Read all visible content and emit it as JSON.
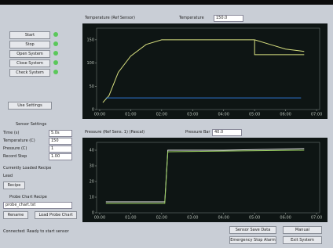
{
  "sidebar": {
    "buttons": [
      "Start",
      "Stop",
      "Open System",
      "Close System",
      "Check System"
    ],
    "settings_button": "Use Settings",
    "sensor_title": "Sensor Settings",
    "fields": [
      {
        "label": "Time (s)",
        "value": "5.0s"
      },
      {
        "label": "Temperature (C)",
        "value": "150"
      },
      {
        "label": "Pressure (C)",
        "value": "1"
      },
      {
        "label": "Record Step",
        "value": "1.00"
      }
    ],
    "recipe_title": "Currently Loaded Recipe",
    "recipe_value": "Lead",
    "recipe_button": "Recipe",
    "probe_title": "Probe Chart Recipe",
    "probe_file": "probe_chart.txt",
    "rename_button": "Rename",
    "load_button": "Load Probe Chart"
  },
  "charts": [
    {
      "title": "Temperature (Ref Sensor)",
      "extra_label": "Temperature",
      "extra_value": "150.0",
      "xlim": [
        -0.1,
        7.1
      ],
      "xticks": [
        {
          "value": 0,
          "label": "00:00"
        },
        {
          "value": 1,
          "label": "01:00"
        },
        {
          "value": 2,
          "label": "02:00"
        },
        {
          "value": 3,
          "label": "03:00"
        },
        {
          "value": 4,
          "label": "04:00"
        },
        {
          "value": 5,
          "label": "05:00"
        },
        {
          "value": 6,
          "label": "06:00"
        },
        {
          "value": 7,
          "label": "07:00"
        }
      ],
      "ylim": [
        0,
        175
      ],
      "yticks": [
        0,
        50,
        100,
        150
      ],
      "series": [
        {
          "color": "#d8e080",
          "x": [
            0.1,
            0.3,
            0.6,
            1.0,
            1.5,
            2.0,
            3,
            4,
            5
          ],
          "y": [
            15,
            30,
            80,
            115,
            140,
            150,
            150,
            150,
            150
          ]
        },
        {
          "color": "#d8e080",
          "x": [
            5,
            5.5,
            6,
            6.6
          ],
          "y": [
            150,
            140,
            130,
            125
          ]
        },
        {
          "color": "#d8e080",
          "x": [
            5,
            5,
            6.6
          ],
          "y": [
            150,
            118,
            118
          ]
        },
        {
          "color": "#2f7ad8",
          "x": [
            0.2,
            6.5
          ],
          "y": [
            25,
            25
          ]
        }
      ]
    },
    {
      "title": "Pressure (Ref Sens. 1) (Pascal)",
      "extra_label": "Pressure Bar",
      "extra_value": "40.0",
      "xlim": [
        -0.1,
        7.1
      ],
      "xticks": [
        {
          "value": 0,
          "label": "00:00"
        },
        {
          "value": 1,
          "label": "01:00"
        },
        {
          "value": 2,
          "label": "02:00"
        },
        {
          "value": 3,
          "label": "03:00"
        },
        {
          "value": 4,
          "label": "04:00"
        },
        {
          "value": 5,
          "label": "05:00"
        },
        {
          "value": 6,
          "label": "06:00"
        },
        {
          "value": 7,
          "label": "07:00"
        }
      ],
      "ylim": [
        0,
        45
      ],
      "yticks": [
        0,
        10,
        20,
        30,
        40
      ],
      "series": [
        {
          "color": "#f0f0f0",
          "x": [
            0.2,
            2.1,
            2.2,
            4,
            6.6
          ],
          "y": [
            7,
            7,
            40,
            40,
            41
          ]
        },
        {
          "color": "#9ad060",
          "x": [
            0.2,
            2.1,
            2.2,
            6.6
          ],
          "y": [
            6,
            6,
            39,
            40
          ]
        }
      ]
    }
  ],
  "status": {
    "message": "Connected: Ready to start sensor",
    "buttons": [
      "Sensor Save Data",
      "Manual",
      "Emergency Stop Alarm",
      "Exit System"
    ]
  }
}
